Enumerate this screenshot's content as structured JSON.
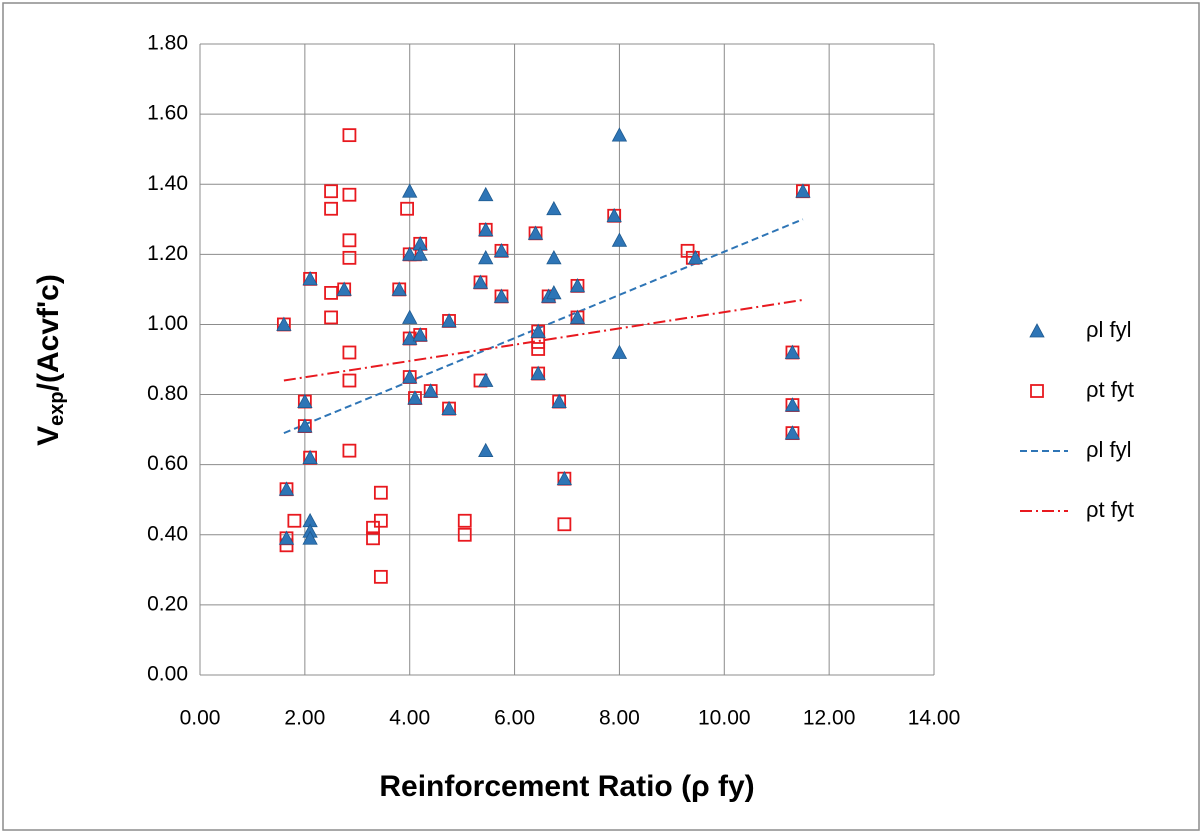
{
  "chart_data": {
    "type": "scatter",
    "x_label": "Reinforcement Ratio (ρ fy)",
    "y_label": [
      "V",
      "exp",
      "/(Acvf'c)"
    ],
    "xlim": [
      0,
      14
    ],
    "ylim": [
      0,
      1.8
    ],
    "xticks": [
      {
        "value": 0,
        "label": "0.00"
      },
      {
        "value": 2,
        "label": "2.00"
      },
      {
        "value": 4,
        "label": "4.00"
      },
      {
        "value": 6,
        "label": "6.00"
      },
      {
        "value": 8,
        "label": "8.00"
      },
      {
        "value": 10,
        "label": "10.00"
      },
      {
        "value": 12,
        "label": "12.00"
      },
      {
        "value": 14,
        "label": "14.00"
      }
    ],
    "yticks": [
      {
        "value": 0,
        "label": "0.00"
      },
      {
        "value": 0.2,
        "label": "0.20"
      },
      {
        "value": 0.4,
        "label": "0.40"
      },
      {
        "value": 0.6,
        "label": "0.60"
      },
      {
        "value": 0.8,
        "label": "0.80"
      },
      {
        "value": 1.0,
        "label": "1.00"
      },
      {
        "value": 1.2,
        "label": "1.20"
      },
      {
        "value": 1.4,
        "label": "1.40"
      },
      {
        "value": 1.6,
        "label": "1.60"
      },
      {
        "value": 1.8,
        "label": "1.80"
      }
    ],
    "grid": true,
    "legend": "right",
    "series": [
      {
        "name": "ρl fyl",
        "color": "#2e75b6",
        "marker": "triangle",
        "x": [
          1.6,
          1.65,
          1.65,
          2.0,
          2.0,
          2.1,
          2.1,
          2.1,
          2.1,
          2.1,
          2.75,
          3.8,
          4.0,
          4.0,
          4.0,
          4.0,
          4.0,
          4.2,
          4.2,
          4.2,
          4.1,
          4.4,
          4.75,
          4.75,
          5.35,
          5.45,
          5.45,
          5.45,
          5.45,
          5.45,
          5.75,
          5.75,
          6.4,
          6.45,
          6.45,
          6.65,
          6.75,
          6.75,
          6.75,
          6.85,
          6.95,
          7.2,
          7.2,
          7.9,
          8.0,
          8.0,
          8.0,
          9.45,
          11.3,
          11.3,
          11.3,
          11.5
        ],
        "y": [
          1.0,
          0.53,
          0.39,
          0.78,
          0.71,
          1.13,
          0.62,
          0.44,
          0.41,
          0.39,
          1.1,
          1.1,
          1.38,
          1.2,
          1.02,
          0.96,
          0.85,
          1.23,
          1.2,
          0.97,
          0.79,
          0.81,
          1.01,
          0.76,
          1.12,
          1.37,
          1.27,
          1.19,
          0.84,
          0.64,
          1.21,
          1.08,
          1.26,
          0.98,
          0.86,
          1.08,
          1.33,
          1.19,
          1.09,
          0.78,
          0.56,
          1.11,
          1.02,
          1.31,
          1.54,
          1.24,
          0.92,
          1.19,
          0.92,
          0.77,
          0.69,
          1.38
        ]
      },
      {
        "name": "ρt fyt",
        "color": "#e8191f",
        "marker": "square",
        "x": [
          1.6,
          1.65,
          1.65,
          1.65,
          1.8,
          2.0,
          2.0,
          2.1,
          2.1,
          2.5,
          2.5,
          2.5,
          2.5,
          2.75,
          2.85,
          2.85,
          2.85,
          2.85,
          2.85,
          2.85,
          2.85,
          3.3,
          3.3,
          3.45,
          3.45,
          3.45,
          3.8,
          3.95,
          4.0,
          4.0,
          4.0,
          4.1,
          4.1,
          4.2,
          4.2,
          4.4,
          4.75,
          4.75,
          5.05,
          5.05,
          5.35,
          5.35,
          5.45,
          5.75,
          5.75,
          6.4,
          6.45,
          6.45,
          6.45,
          6.45,
          6.65,
          6.85,
          6.95,
          6.95,
          7.2,
          7.2,
          7.9,
          9.3,
          9.4,
          11.3,
          11.3,
          11.3,
          11.5
        ],
        "y": [
          1.0,
          0.53,
          0.39,
          0.37,
          0.44,
          0.78,
          0.71,
          0.62,
          1.13,
          1.38,
          1.33,
          1.09,
          1.02,
          1.1,
          1.54,
          1.37,
          1.24,
          1.19,
          0.92,
          0.84,
          0.64,
          0.42,
          0.39,
          0.52,
          0.44,
          0.28,
          1.1,
          1.33,
          1.2,
          0.96,
          0.85,
          1.2,
          0.79,
          1.23,
          0.97,
          0.81,
          1.01,
          0.76,
          0.44,
          0.4,
          1.12,
          0.84,
          1.27,
          1.21,
          1.08,
          1.26,
          0.98,
          0.95,
          0.93,
          0.86,
          1.08,
          0.78,
          0.56,
          0.43,
          1.11,
          1.02,
          1.31,
          1.21,
          1.19,
          0.92,
          0.77,
          0.69,
          1.38
        ]
      },
      {
        "name": "ρl fyl",
        "color": "#2e75b6",
        "line": "dashed",
        "x": [
          1.6,
          11.5
        ],
        "y": [
          0.69,
          1.3
        ]
      },
      {
        "name": "ρt fyt",
        "color": "#e8191f",
        "line": "dashdot",
        "x": [
          1.6,
          11.5
        ],
        "y": [
          0.84,
          1.07
        ]
      }
    ]
  }
}
